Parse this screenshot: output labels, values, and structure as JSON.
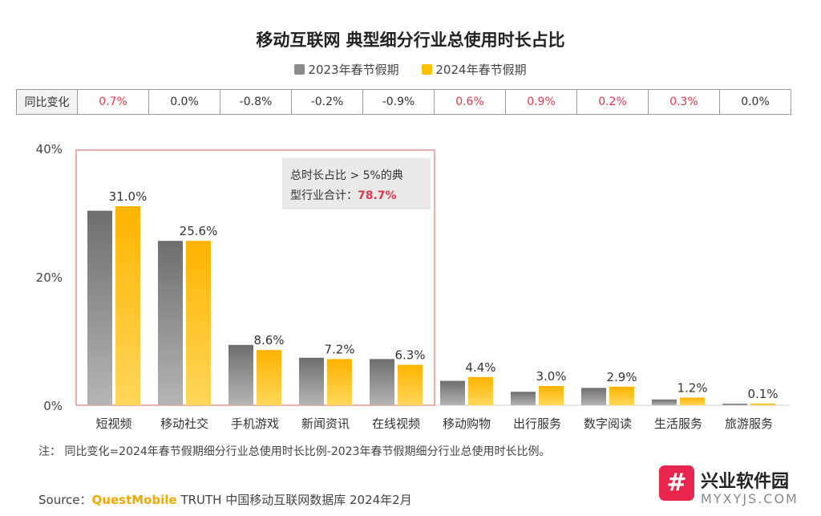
{
  "title": "移动互联网 典型细分行业总使用时长占比",
  "legend": [
    {
      "label": "2023年春节假期",
      "color": "#8c8c8c"
    },
    {
      "label": "2024年春节假期",
      "color": "#ffc000"
    }
  ],
  "yoy": {
    "header": "同比变化",
    "values": [
      "0.7%",
      "0.0%",
      "-0.8%",
      "-0.2%",
      "-0.9%",
      "0.6%",
      "0.9%",
      "0.2%",
      "0.3%",
      "0.0%"
    ],
    "positive_color": "#e0364f",
    "neutral_color": "#333333"
  },
  "callout": {
    "line1": "总时长占比 > 5%的典",
    "line2_prefix": "型行业合计：",
    "highlight": "78.7%",
    "highlight_color": "#e0364f"
  },
  "chart_data": {
    "type": "bar",
    "categories": [
      "短视频",
      "移动社交",
      "手机游戏",
      "新闻资讯",
      "在线视频",
      "移动购物",
      "出行服务",
      "数字阅读",
      "生活服务",
      "旅游服务"
    ],
    "series": [
      {
        "name": "2023年春节假期",
        "values": [
          30.3,
          25.6,
          9.4,
          7.4,
          7.2,
          3.8,
          2.1,
          2.7,
          0.9,
          0.1
        ]
      },
      {
        "name": "2024年春节假期",
        "values": [
          31.0,
          25.6,
          8.6,
          7.2,
          6.3,
          4.4,
          3.0,
          2.9,
          1.2,
          0.1
        ]
      }
    ],
    "data_labels": [
      "31.0%",
      "25.6%",
      "8.6%",
      "7.2%",
      "6.3%",
      "4.4%",
      "3.0%",
      "2.9%",
      "1.2%",
      "0.1%"
    ],
    "ylim": [
      0,
      40
    ],
    "yticks": [
      "0%",
      "20%",
      "40%"
    ],
    "grid": false,
    "legend_position": "top"
  },
  "note": "注：  同比变化=2024年春节假期细分行业总使用时长比例-2023年春节假期细分行业总使用时长比例。",
  "source": {
    "prefix": "Source：",
    "brand": "QuestMobile",
    "rest": " TRUTH 中国移动互联网数据库 2024年2月"
  },
  "watermark": {
    "badge": "#",
    "name": "兴业软件园",
    "url": "MYXYJS.COM"
  }
}
